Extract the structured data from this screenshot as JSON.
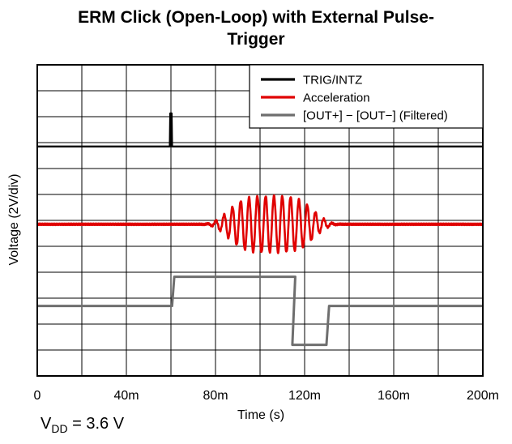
{
  "title_line1": "ERM Click (Open-Loop) with External Pulse-",
  "title_line2": "Trigger",
  "footnote": {
    "symbol": "V",
    "subscript": "DD",
    "text": " = 3.6 V"
  },
  "chart_data": {
    "type": "line",
    "title": "ERM Click (Open-Loop) with External Pulse-Trigger",
    "xlabel": "Time (s)",
    "ylabel": "Voltage (2V/div)",
    "xlim": [
      0,
      0.2
    ],
    "ylim": [
      -6,
      10
    ],
    "xticks": [
      {
        "value": 0,
        "label": "0"
      },
      {
        "value": 0.04,
        "label": "40m"
      },
      {
        "value": 0.08,
        "label": "80m"
      },
      {
        "value": 0.12,
        "label": "120m"
      },
      {
        "value": 0.16,
        "label": "160m"
      },
      {
        "value": 0.2,
        "label": "200m"
      }
    ],
    "grid": true,
    "legend_position": "top-right",
    "series": [
      {
        "name": "TRIG/INTZ",
        "color": "#000000",
        "x": [
          0,
          0.0595,
          0.0597,
          0.0603,
          0.0605,
          0.2
        ],
        "y": [
          5.8,
          5.8,
          7.5,
          7.5,
          5.8,
          5.8
        ]
      },
      {
        "name": "Acceleration",
        "color": "#e00000",
        "kind": "burst",
        "baseline": 1.8,
        "start": 0.068,
        "end": 0.142,
        "carrier_hz": 268,
        "peak_amplitude": 1.45,
        "peak_center": 0.105
      },
      {
        "name": "[OUT+] − [OUT−] (Filtered)",
        "color": "#6e6e6e",
        "x": [
          0,
          0.0605,
          0.0615,
          0.1145,
          0.1158,
          0.1145,
          0.1162,
          0.1298,
          0.131,
          0.2
        ],
        "y": [
          -2.4,
          -2.4,
          -0.9,
          -0.9,
          -0.9,
          -4.4,
          -4.4,
          -4.4,
          -2.4,
          -2.4
        ]
      }
    ]
  }
}
